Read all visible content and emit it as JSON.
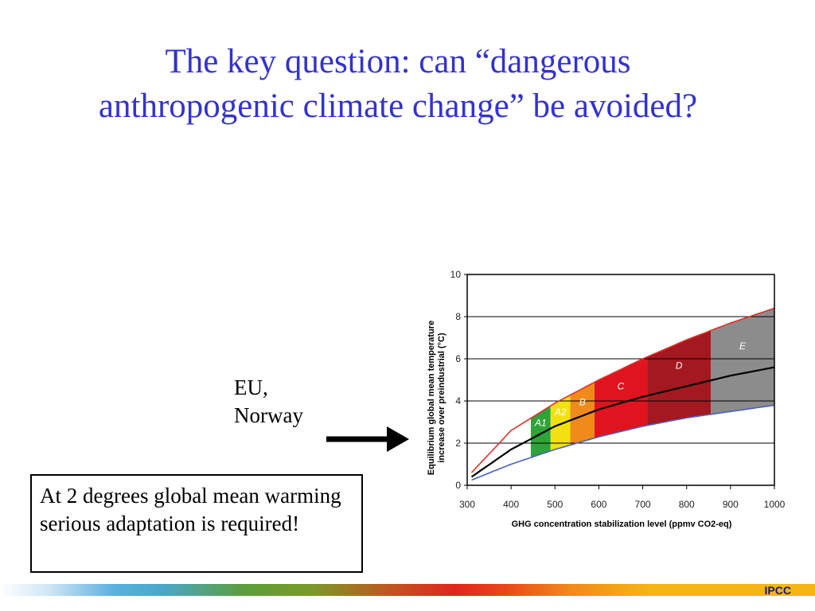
{
  "slide": {
    "title_line1": "The key question: can “dangerous",
    "title_line2": "anthropogenic climate change” be avoided?",
    "label_line1": "EU,",
    "label_line2": "Norway",
    "note": "At 2 degrees global mean warming serious adaptation is required!",
    "footer": "IPCC"
  },
  "colors": {
    "title": "#3333cc",
    "upper_curve": "#e0302a",
    "central_curve": "#000000",
    "lower_curve": "#4a5fbf",
    "A1": "#2ea33a",
    "A2": "#f2e010",
    "B": "#f08a1a",
    "C": "#e0141e",
    "D": "#a41820",
    "E": "#8c8c8c"
  },
  "chart_data": {
    "type": "area",
    "title": "",
    "xlabel": "GHG concentration stabilization level (ppmv CO2-eq)",
    "ylabel_line1": "Equilibrium global mean temperature",
    "ylabel_line2": "increase over preindustrial (°C)",
    "xlim": [
      300,
      1000
    ],
    "ylim": [
      0,
      10
    ],
    "x_ticks": [
      300,
      400,
      500,
      600,
      700,
      800,
      900,
      1000
    ],
    "y_ticks": [
      0,
      2,
      4,
      6,
      8,
      10
    ],
    "climate_sensitivity_curves": [
      {
        "name": "upper",
        "x": [
          310,
          400,
          500,
          600,
          700,
          800,
          900,
          1000
        ],
        "y": [
          0.6,
          2.6,
          3.9,
          5.0,
          6.0,
          6.9,
          7.7,
          8.4
        ]
      },
      {
        "name": "central",
        "x": [
          310,
          400,
          500,
          600,
          700,
          800,
          900,
          1000
        ],
        "y": [
          0.4,
          1.7,
          2.8,
          3.6,
          4.2,
          4.7,
          5.2,
          5.6
        ]
      },
      {
        "name": "lower",
        "x": [
          310,
          400,
          500,
          600,
          700,
          800,
          900,
          1000
        ],
        "y": [
          0.25,
          1.0,
          1.7,
          2.3,
          2.8,
          3.2,
          3.5,
          3.8
        ]
      }
    ],
    "categories": [
      {
        "label": "A1",
        "x0": 445,
        "x1": 490
      },
      {
        "label": "A2",
        "x0": 490,
        "x1": 535
      },
      {
        "label": "B",
        "x0": 535,
        "x1": 590
      },
      {
        "label": "C",
        "x0": 590,
        "x1": 710
      },
      {
        "label": "D",
        "x0": 710,
        "x1": 855
      },
      {
        "label": "E",
        "x0": 855,
        "x1": 1000
      }
    ]
  }
}
